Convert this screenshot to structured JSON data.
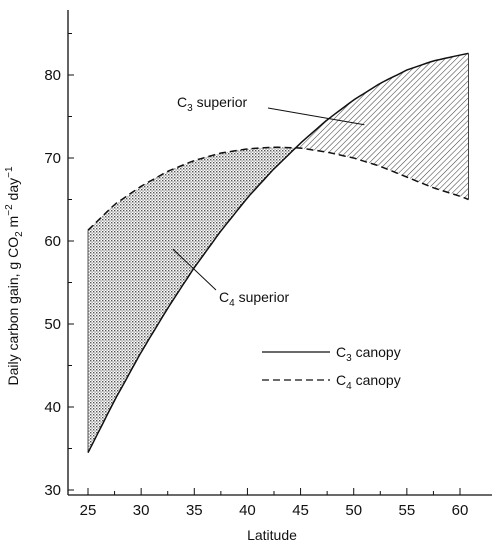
{
  "chart_data": {
    "type": "line",
    "title": "",
    "xlabel": "Latitude",
    "ylabel": "Daily carbon gain, g CO",
    "ylabel_sub": "2",
    "ylabel_unit_m": " m",
    "ylabel_exp_m": "−2",
    "ylabel_unit_day": " day",
    "ylabel_exp_day": "−1",
    "xlim": [
      25,
      62
    ],
    "ylim": [
      30,
      88
    ],
    "xticks": [
      25,
      30,
      35,
      40,
      45,
      50,
      55,
      60
    ],
    "yticks": [
      30,
      40,
      50,
      60,
      70,
      80
    ],
    "grid": false,
    "series": [
      {
        "name": "C3 canopy",
        "style": "solid",
        "x": [
          25,
          27.5,
          30,
          32.5,
          35,
          37.5,
          40,
          42.5,
          45,
          47.5,
          50,
          52.5,
          55,
          57.5,
          60,
          60.8
        ],
        "y": [
          34.5,
          40.8,
          46.6,
          51.9,
          56.8,
          61.2,
          65.2,
          68.7,
          71.8,
          74.6,
          77.0,
          79.0,
          80.6,
          81.7,
          82.4,
          82.6
        ]
      },
      {
        "name": "C4 canopy",
        "style": "dashed",
        "x": [
          25,
          27.5,
          30,
          32.5,
          35,
          37.5,
          40,
          42.5,
          45,
          47.5,
          50,
          52.5,
          55,
          57.5,
          60,
          60.8
        ],
        "y": [
          61.3,
          64.4,
          66.6,
          68.4,
          69.7,
          70.6,
          71.1,
          71.3,
          71.2,
          70.7,
          70.0,
          69.0,
          67.7,
          66.4,
          65.4,
          65.0
        ]
      }
    ],
    "crossover_latitude": 44.7,
    "shaded_regions": [
      {
        "name": "C4 superior",
        "from": 25,
        "to": 44.7
      },
      {
        "name": "C3 superior",
        "from": 44.7,
        "to": 60.8
      }
    ],
    "annotations": [
      {
        "label": "C",
        "sub": "3",
        "rest": " superior",
        "points_to": {
          "x": 51,
          "y": 74
        }
      },
      {
        "label": "C",
        "sub": "4",
        "rest": " superior",
        "points_to": {
          "x": 33,
          "y": 59
        }
      }
    ],
    "legend": {
      "placement": "lower-right",
      "entries": [
        {
          "label": "C",
          "sub": "3",
          "rest": " canopy",
          "style": "solid"
        },
        {
          "label": "C",
          "sub": "4",
          "rest": " canopy",
          "style": "dashed"
        }
      ]
    },
    "colors": {
      "ink": "#111111",
      "hatch": "#444444",
      "stipple": "#555555"
    }
  }
}
